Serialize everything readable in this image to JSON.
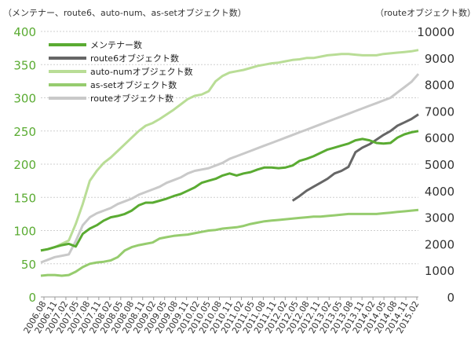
{
  "chart_data": {
    "type": "line",
    "left_axis_title": "（メンテナー、route6、auto-num、as-setオブジェクト数）",
    "right_axis_title": "（routeオブジェクト数）",
    "left_ylim": [
      0,
      400
    ],
    "left_ticks": [
      "0",
      "50",
      "100",
      "150",
      "200",
      "250",
      "300",
      "350",
      "400"
    ],
    "right_ylim": [
      0,
      10000
    ],
    "right_ticks": [
      "0",
      "1000",
      "2000",
      "3000",
      "4000",
      "5000",
      "6000",
      "7000",
      "8000",
      "9000",
      "10000"
    ],
    "x_tick_labels": [
      "2006.08",
      "2006.11",
      "2007.02",
      "2007.05",
      "2007.08",
      "2007.11",
      "2008.02",
      "2008.05",
      "2008.08",
      "2008.11",
      "2009.02",
      "2009.05",
      "2009.08",
      "2009.11",
      "2010.02",
      "2010.05",
      "2010.08",
      "2010.11",
      "2011.02",
      "2011.05",
      "2011.08",
      "2011.11",
      "2012.02",
      "2012.05",
      "2012.08",
      "2012.11",
      "2013.02",
      "2013.05",
      "2013.08",
      "2013.11",
      "2014.02",
      "2014.05",
      "2014.08",
      "2014.11",
      "2015.02"
    ],
    "grid": true,
    "legend_position": "top-left",
    "series": [
      {
        "name": "メンテナー数",
        "axis": "left",
        "color": "#5aab32",
        "width": 3,
        "values": [
          70,
          72,
          75,
          78,
          80,
          76,
          95,
          103,
          108,
          115,
          120,
          122,
          125,
          130,
          138,
          142,
          142,
          145,
          148,
          152,
          155,
          160,
          165,
          172,
          175,
          178,
          183,
          186,
          183,
          186,
          188,
          192,
          195,
          195,
          194,
          195,
          198,
          205,
          208,
          212,
          217,
          222,
          225,
          228,
          231,
          236,
          238,
          236,
          232,
          231,
          232,
          240,
          245,
          248,
          250
        ]
      },
      {
        "name": "route6オブジェクト数",
        "axis": "left",
        "color": "#666666",
        "width": 3,
        "values": [
          null,
          null,
          null,
          null,
          null,
          null,
          null,
          null,
          null,
          null,
          null,
          null,
          null,
          null,
          null,
          null,
          null,
          null,
          null,
          null,
          null,
          null,
          null,
          null,
          null,
          null,
          null,
          null,
          null,
          null,
          null,
          null,
          null,
          null,
          null,
          null,
          145,
          152,
          160,
          166,
          172,
          178,
          186,
          190,
          196,
          218,
          225,
          230,
          237,
          244,
          250,
          258,
          263,
          268,
          275
        ]
      },
      {
        "name": "auto-numオブジェクト数",
        "axis": "left",
        "color": "#b9dd96",
        "width": 3,
        "values": [
          70,
          72,
          75,
          80,
          85,
          110,
          140,
          175,
          190,
          202,
          210,
          220,
          230,
          240,
          250,
          258,
          262,
          268,
          275,
          282,
          290,
          298,
          303,
          305,
          310,
          325,
          333,
          338,
          340,
          342,
          345,
          348,
          350,
          352,
          353,
          355,
          357,
          358,
          360,
          360,
          362,
          364,
          365,
          366,
          366,
          365,
          364,
          364,
          364,
          366,
          367,
          368,
          369,
          370,
          372
        ]
      },
      {
        "name": "as-setオブジェクト数",
        "axis": "left",
        "color": "#96cc6e",
        "width": 3,
        "values": [
          32,
          33,
          33,
          32,
          33,
          38,
          45,
          50,
          52,
          53,
          55,
          60,
          70,
          75,
          78,
          80,
          82,
          88,
          90,
          92,
          93,
          94,
          96,
          98,
          100,
          101,
          103,
          104,
          105,
          107,
          110,
          112,
          114,
          115,
          116,
          117,
          118,
          119,
          120,
          121,
          121,
          122,
          123,
          124,
          125,
          125,
          125,
          125,
          125,
          126,
          127,
          128,
          129,
          130,
          131
        ]
      },
      {
        "name": "routeオブジェクト数",
        "axis": "right",
        "color": "#c9c9c9",
        "width": 3,
        "values": [
          1300,
          1400,
          1500,
          1550,
          1600,
          2100,
          2700,
          3000,
          3150,
          3250,
          3350,
          3500,
          3600,
          3700,
          3850,
          3950,
          4050,
          4150,
          4300,
          4400,
          4500,
          4650,
          4750,
          4800,
          4850,
          4950,
          5050,
          5200,
          5300,
          5400,
          5500,
          5600,
          5700,
          5800,
          5900,
          6000,
          6100,
          6200,
          6300,
          6400,
          6500,
          6600,
          6700,
          6800,
          6900,
          7000,
          7100,
          7200,
          7300,
          7400,
          7500,
          7700,
          7900,
          8100,
          8400
        ]
      }
    ]
  }
}
